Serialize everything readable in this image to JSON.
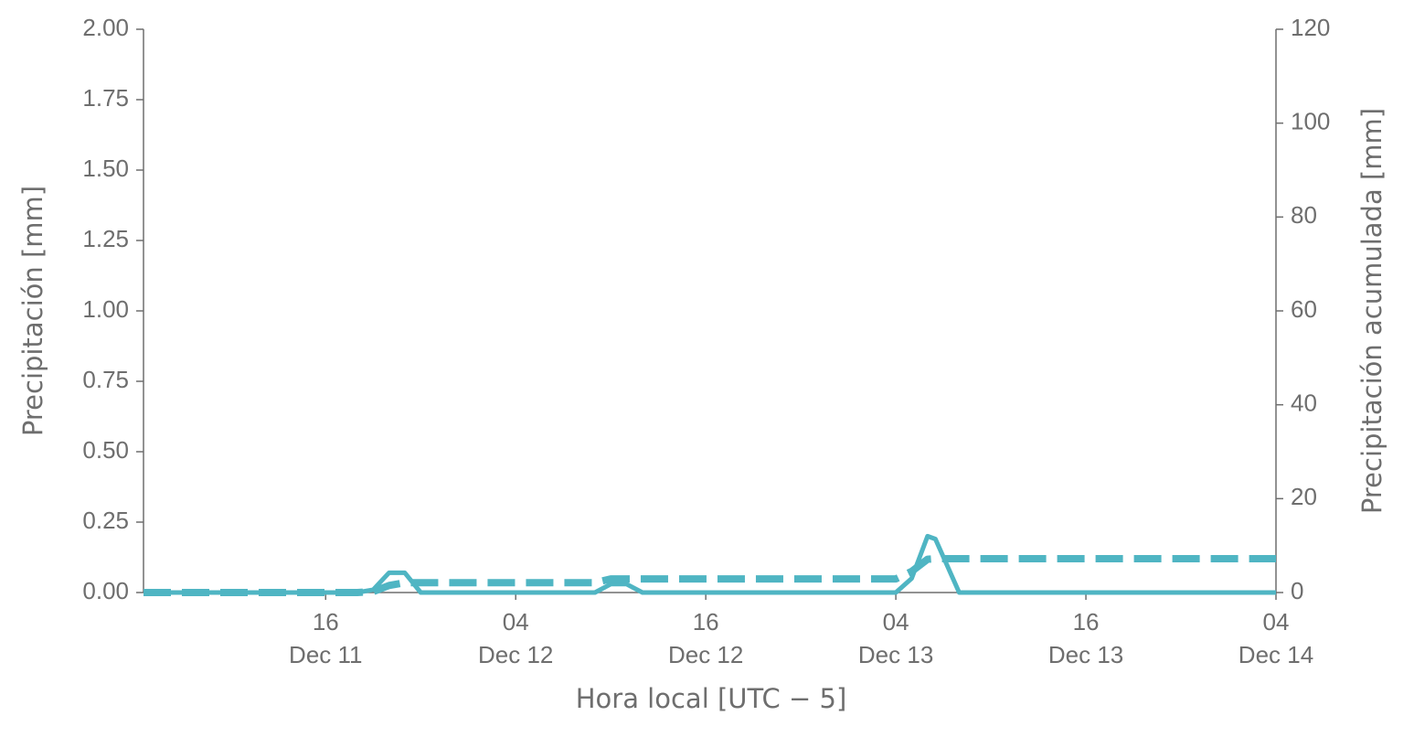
{
  "chart_data": {
    "type": "line",
    "x": [
      "Dec 11 04:30",
      "Dec 11 18:00",
      "Dec 11 19:00",
      "Dec 11 20:00",
      "Dec 11 21:00",
      "Dec 11 22:00",
      "Dec 12 09:00",
      "Dec 12 10:00",
      "Dec 12 11:00",
      "Dec 12 12:00",
      "Dec 13 04:00",
      "Dec 13 05:00",
      "Dec 13 06:00",
      "Dec 13 06:30",
      "Dec 13 08:00",
      "Dec 14 04:00"
    ],
    "series": [
      {
        "color": "#4fb5c3",
        "dash": false,
        "values": [
          0,
          0,
          0.01,
          0.07,
          0.07,
          0,
          0,
          0.03,
          0.03,
          0,
          0,
          0.05,
          0.2,
          0.19,
          0,
          0
        ]
      },
      {
        "color": "#4fb5c3",
        "dash": true,
        "axis": "y2",
        "values": [
          0,
          0,
          0.2,
          1.5,
          2.1,
          2.1,
          2.1,
          2.9,
          2.9,
          2.9,
          2.9,
          4.5,
          7.1,
          7.2,
          7.2,
          7.2
        ]
      }
    ],
    "xlabel": "Hora local [UTC − 5]",
    "ylabel": "Precipitación [mm]",
    "y2label": "Precipitación acumulada [mm]",
    "xlim": [
      "Dec 11 04:30",
      "Dec 14 04:00"
    ],
    "xticks": [
      {
        "value": "Dec 11 16:00",
        "label": [
          "16",
          "Dec 11"
        ]
      },
      {
        "value": "Dec 12 04:00",
        "label": [
          "04",
          "Dec 12"
        ]
      },
      {
        "value": "Dec 12 16:00",
        "label": [
          "16",
          "Dec 12"
        ]
      },
      {
        "value": "Dec 13 04:00",
        "label": [
          "04",
          "Dec 13"
        ]
      },
      {
        "value": "Dec 13 16:00",
        "label": [
          "16",
          "Dec 13"
        ]
      },
      {
        "value": "Dec 14 04:00",
        "label": [
          "04",
          "Dec 14"
        ]
      }
    ],
    "ylim": [
      0,
      2
    ],
    "yticks": [
      {
        "value": 0,
        "label": "0.00"
      },
      {
        "value": 0.25,
        "label": "0.25"
      },
      {
        "value": 0.5,
        "label": "0.50"
      },
      {
        "value": 0.75,
        "label": "0.75"
      },
      {
        "value": 1,
        "label": "1.00"
      },
      {
        "value": 1.25,
        "label": "1.25"
      },
      {
        "value": 1.5,
        "label": "1.50"
      },
      {
        "value": 1.75,
        "label": "1.75"
      },
      {
        "value": 2,
        "label": "2.00"
      }
    ],
    "y2lim": [
      0,
      120
    ],
    "y2ticks": [
      0,
      20,
      40,
      60,
      80,
      100,
      120
    ]
  }
}
